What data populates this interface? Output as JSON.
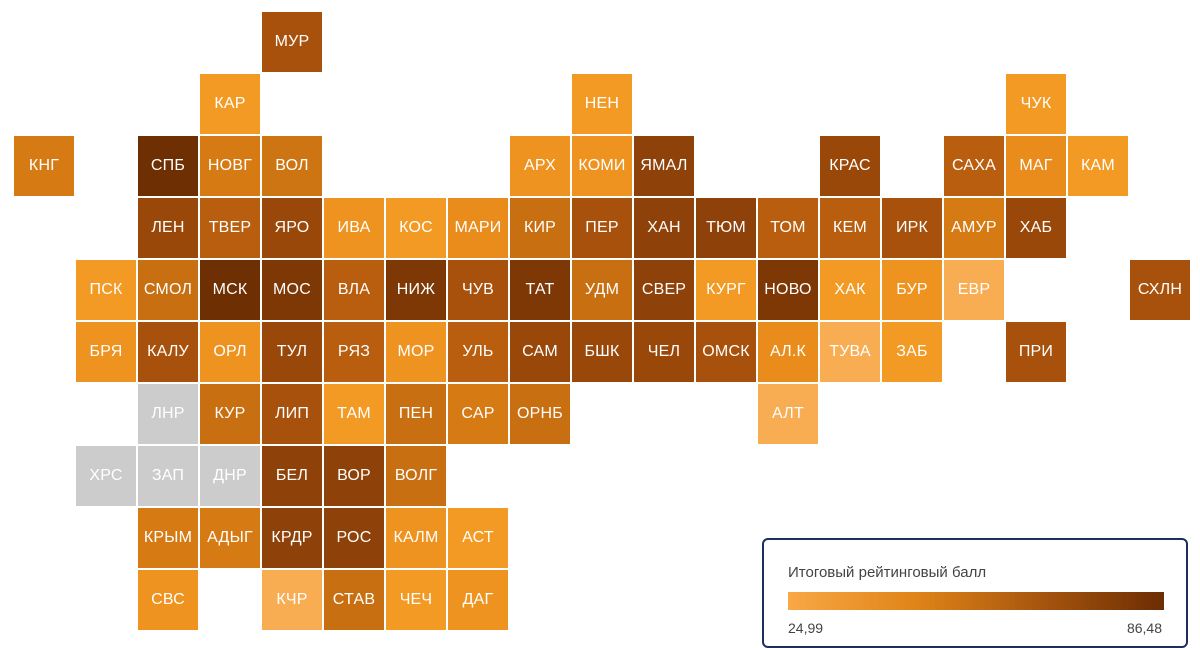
{
  "legend": {
    "title": "Итоговый рейтинговый балл",
    "min": "24,99",
    "max": "86,48",
    "colors": [
      "#f8a845",
      "#e08518",
      "#a8560e",
      "#6b2d03"
    ]
  },
  "no_data_color": "#cccccc",
  "regions": [
    {
      "label": "МУР",
      "color": "#a8510c"
    },
    {
      "label": "КАР",
      "color": "#f39a24"
    },
    {
      "label": "НЕН",
      "color": "#f39a24"
    },
    {
      "label": "ЧУК",
      "color": "#f39a24"
    },
    {
      "label": "КНГ",
      "color": "#d67a14"
    },
    {
      "label": "СПБ",
      "color": "#6e2f03"
    },
    {
      "label": "НОВГ",
      "color": "#d67a14"
    },
    {
      "label": "ВОЛ",
      "color": "#cc7512"
    },
    {
      "label": "АРХ",
      "color": "#ee931f"
    },
    {
      "label": "КОМИ",
      "color": "#ee931f"
    },
    {
      "label": "ЯМАЛ",
      "color": "#8e4109"
    },
    {
      "label": "КРАС",
      "color": "#9a480a"
    },
    {
      "label": "САХА",
      "color": "#b95e0f"
    },
    {
      "label": "МАГ",
      "color": "#e98c1b"
    },
    {
      "label": "КАМ",
      "color": "#f39a24"
    },
    {
      "label": "ЛЕН",
      "color": "#9a480a"
    },
    {
      "label": "ТВЕР",
      "color": "#b95e0f"
    },
    {
      "label": "ЯРО",
      "color": "#9a480a"
    },
    {
      "label": "ИВА",
      "color": "#ee931f"
    },
    {
      "label": "КОС",
      "color": "#f39a24"
    },
    {
      "label": "МАРИ",
      "color": "#e98c1b"
    },
    {
      "label": "КИР",
      "color": "#c86f11"
    },
    {
      "label": "ПЕР",
      "color": "#a8510c"
    },
    {
      "label": "ХАН",
      "color": "#8e4109"
    },
    {
      "label": "ТЮМ",
      "color": "#8e4109"
    },
    {
      "label": "ТОМ",
      "color": "#b95e0f"
    },
    {
      "label": "КЕМ",
      "color": "#b95e0f"
    },
    {
      "label": "ИРК",
      "color": "#a8510c"
    },
    {
      "label": "АМУР",
      "color": "#d67a14"
    },
    {
      "label": "ХАБ",
      "color": "#9a480a"
    },
    {
      "label": "ПСК",
      "color": "#f39a24"
    },
    {
      "label": "СМОЛ",
      "color": "#c86f11"
    },
    {
      "label": "МСК",
      "color": "#6e2f03"
    },
    {
      "label": "МОС",
      "color": "#7e3806"
    },
    {
      "label": "ВЛА",
      "color": "#b95e0f"
    },
    {
      "label": "НИЖ",
      "color": "#7e3806"
    },
    {
      "label": "ЧУВ",
      "color": "#a8510c"
    },
    {
      "label": "ТАТ",
      "color": "#7e3806"
    },
    {
      "label": "УДМ",
      "color": "#c86f11"
    },
    {
      "label": "СВЕР",
      "color": "#8e4109"
    },
    {
      "label": "КУРГ",
      "color": "#f39a24"
    },
    {
      "label": "НОВО",
      "color": "#7e3806"
    },
    {
      "label": "ХАК",
      "color": "#f39a24"
    },
    {
      "label": "БУР",
      "color": "#ee931f"
    },
    {
      "label": "ЕВР",
      "color": "#f8ad52"
    },
    {
      "label": "СХЛН",
      "color": "#a8510c"
    },
    {
      "label": "БРЯ",
      "color": "#ee931f"
    },
    {
      "label": "КАЛУ",
      "color": "#a8510c"
    },
    {
      "label": "ОРЛ",
      "color": "#ee931f"
    },
    {
      "label": "ТУЛ",
      "color": "#9a480a"
    },
    {
      "label": "РЯЗ",
      "color": "#b95e0f"
    },
    {
      "label": "МОР",
      "color": "#ee931f"
    },
    {
      "label": "УЛЬ",
      "color": "#b95e0f"
    },
    {
      "label": "САМ",
      "color": "#9a480a"
    },
    {
      "label": "БШК",
      "color": "#9a480a"
    },
    {
      "label": "ЧЕЛ",
      "color": "#9a480a"
    },
    {
      "label": "ОМСК",
      "color": "#a8510c"
    },
    {
      "label": "АЛ.К",
      "color": "#e98c1b"
    },
    {
      "label": "ТУВА",
      "color": "#f8ad52"
    },
    {
      "label": "ЗАБ",
      "color": "#f39a24"
    },
    {
      "label": "ПРИ",
      "color": "#a8510c"
    },
    {
      "label": "ЛНР",
      "color": "#cccccc"
    },
    {
      "label": "КУР",
      "color": "#c86f11"
    },
    {
      "label": "ЛИП",
      "color": "#a8510c"
    },
    {
      "label": "ТАМ",
      "color": "#f39a24"
    },
    {
      "label": "ПЕН",
      "color": "#c86f11"
    },
    {
      "label": "САР",
      "color": "#d67a14"
    },
    {
      "label": "ОРНБ",
      "color": "#c86f11"
    },
    {
      "label": "АЛТ",
      "color": "#f8ad52"
    },
    {
      "label": "ХРС",
      "color": "#cccccc"
    },
    {
      "label": "ЗАП",
      "color": "#cccccc"
    },
    {
      "label": "ДНР",
      "color": "#cccccc"
    },
    {
      "label": "БЕЛ",
      "color": "#8e4109"
    },
    {
      "label": "ВОР",
      "color": "#8e4109"
    },
    {
      "label": "ВОЛГ",
      "color": "#c86f11"
    },
    {
      "label": "КРЫМ",
      "color": "#d67a14"
    },
    {
      "label": "АДЫГ",
      "color": "#d67a14"
    },
    {
      "label": "КРДР",
      "color": "#8e4109"
    },
    {
      "label": "РОС",
      "color": "#8e4109"
    },
    {
      "label": "КАЛМ",
      "color": "#ee931f"
    },
    {
      "label": "АСТ",
      "color": "#f39a24"
    },
    {
      "label": "СВС",
      "color": "#ee931f"
    },
    {
      "label": "КЧР",
      "color": "#f8ad52"
    },
    {
      "label": "СТАВ",
      "color": "#c86f11"
    },
    {
      "label": "ЧЕЧ",
      "color": "#f39a24"
    },
    {
      "label": "ДАГ",
      "color": "#ee931f"
    }
  ]
}
